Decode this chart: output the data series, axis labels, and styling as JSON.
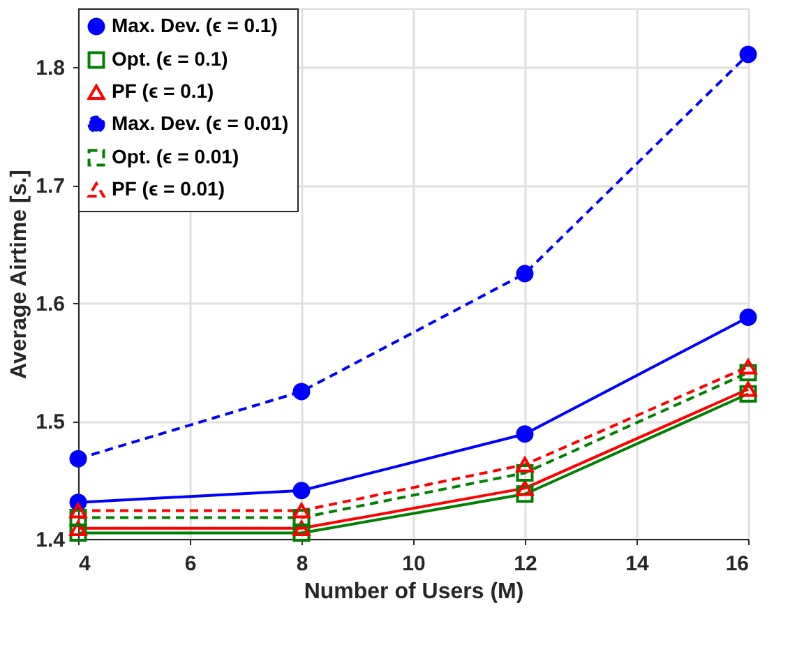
{
  "chart_data": {
    "type": "line",
    "xlabel": "Number of Users (M)",
    "ylabel": "Average Airtime [s.]",
    "x": [
      4,
      8,
      12,
      16
    ],
    "xlim": [
      4,
      16
    ],
    "xticks": [
      4,
      6,
      8,
      10,
      12,
      14,
      16
    ],
    "ylim": [
      1.4,
      1.85
    ],
    "yticks": [
      1.4,
      1.5,
      1.6,
      1.7,
      1.8
    ],
    "grid": true,
    "legend": "top left",
    "series": [
      {
        "name": "Max. Dev. (ϵ = 0.1)",
        "color": "#0000ff",
        "marker": "circle",
        "line_style": "solid",
        "values": [
          1.431,
          1.441,
          1.489,
          1.588
        ]
      },
      {
        "name": "Opt. (ϵ = 0.1)",
        "color": "#008000",
        "marker": "square",
        "line_style": "solid",
        "values": [
          1.405,
          1.405,
          1.438,
          1.523
        ]
      },
      {
        "name": "PF (ϵ = 0.1)",
        "color": "#ff0000",
        "marker": "triangle",
        "line_style": "solid",
        "values": [
          1.409,
          1.409,
          1.443,
          1.527
        ]
      },
      {
        "name": "Max. Dev. (ϵ = 0.01)",
        "color": "#0000ff",
        "marker": "circle",
        "line_style": "dashed",
        "values": [
          1.468,
          1.525,
          1.625,
          1.811
        ]
      },
      {
        "name": "Opt. (ϵ = 0.01)",
        "color": "#008000",
        "marker": "square",
        "line_style": "dashed",
        "values": [
          1.418,
          1.418,
          1.456,
          1.541
        ]
      },
      {
        "name": "PF (ϵ = 0.01)",
        "color": "#ff0000",
        "marker": "triangle",
        "line_style": "dashed",
        "values": [
          1.424,
          1.424,
          1.463,
          1.546
        ]
      }
    ]
  }
}
